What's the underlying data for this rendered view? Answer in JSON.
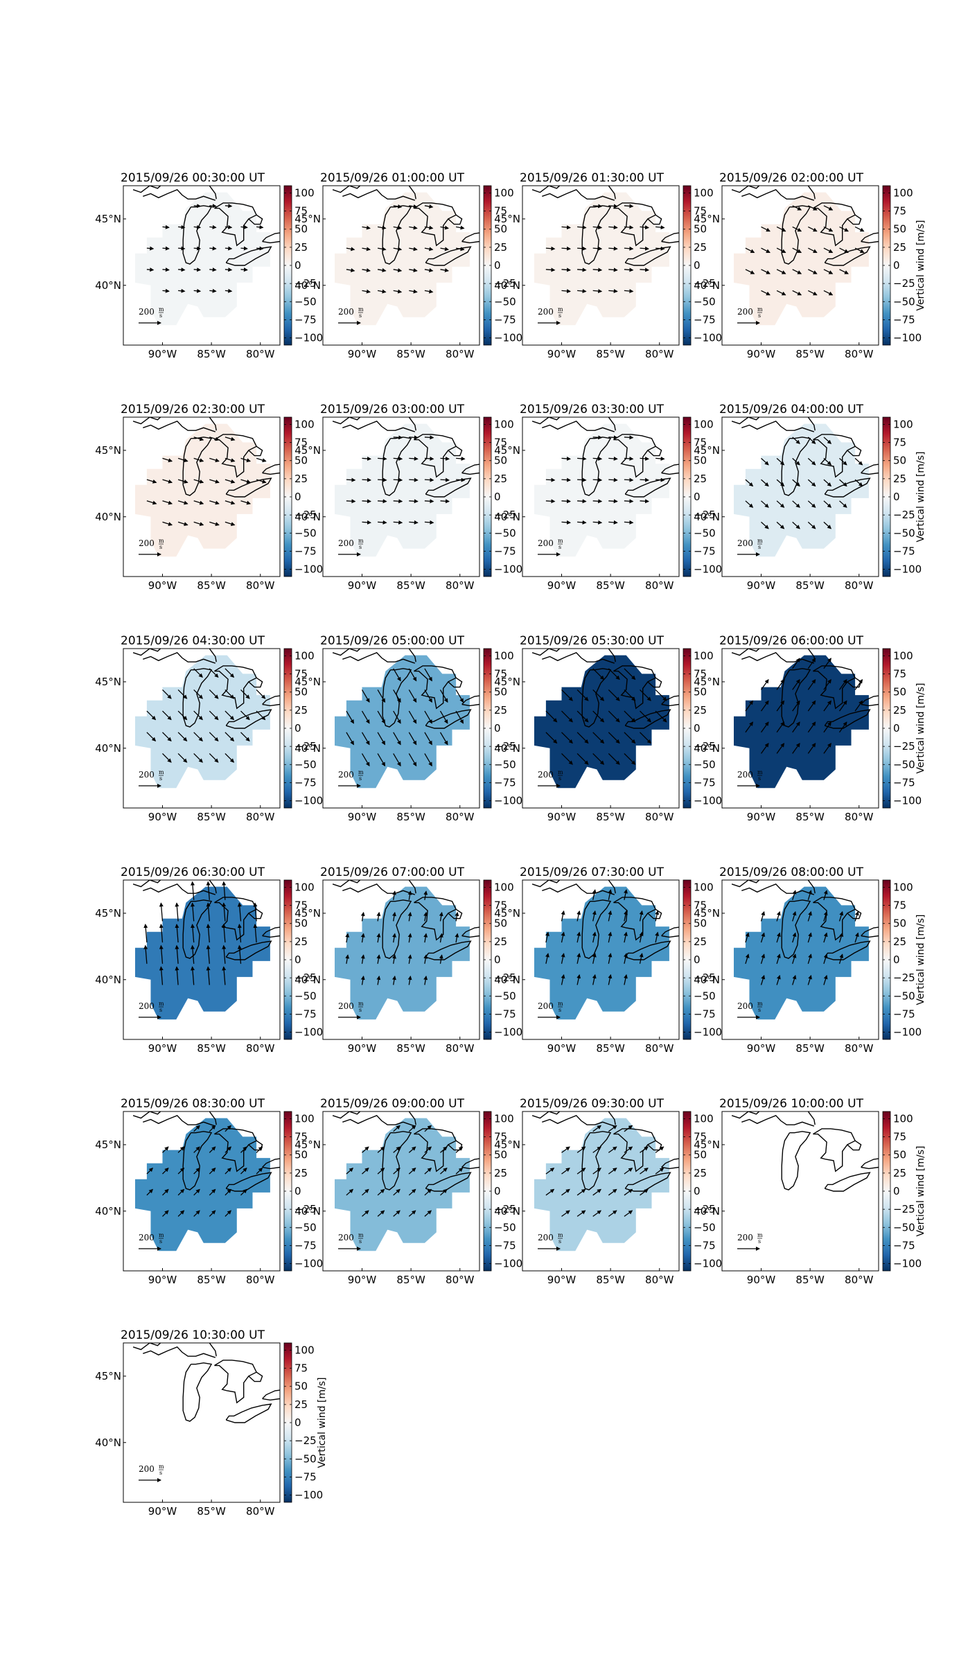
{
  "figure": {
    "colorbar": {
      "label": "Vertical wind [m/s]",
      "ticks": [
        "100",
        "75",
        "50",
        "25",
        "0",
        "−25",
        "−50",
        "−75",
        "−100"
      ],
      "tick_values": [
        100,
        75,
        50,
        25,
        0,
        -25,
        -50,
        -75,
        -100
      ],
      "range": [
        -110,
        110
      ],
      "colormap": "RdBu_r",
      "colors": {
        "low": "#053061",
        "mid": "#f7f7f7",
        "high": "#67001f"
      }
    },
    "xticks": [
      "90°W",
      "85°W",
      "80°W"
    ],
    "xtick_values": [
      -90,
      -85,
      -80
    ],
    "yticks": [
      "45°N",
      "40°N"
    ],
    "ytick_values": [
      45,
      40
    ],
    "lon_range": [
      -94,
      -78
    ],
    "lat_range": [
      35.5,
      47.5
    ],
    "quiver_key_label": "200",
    "quiver_key_units": [
      "m",
      "s"
    ],
    "quiver_key_value": 200
  },
  "chart_data": [
    {
      "type": "heatmap",
      "title": "2015/09/26 00:30:00 UT",
      "vertical_wind": -3,
      "wind_u": 90,
      "wind_v": -8,
      "has_data": true
    },
    {
      "type": "heatmap",
      "title": "2015/09/26 01:00:00 UT",
      "vertical_wind": 5,
      "wind_u": 110,
      "wind_v": -20,
      "has_data": true
    },
    {
      "type": "heatmap",
      "title": "2015/09/26 01:30:00 UT",
      "vertical_wind": 5,
      "wind_u": 120,
      "wind_v": -10,
      "has_data": true
    },
    {
      "type": "heatmap",
      "title": "2015/09/26 02:00:00 UT",
      "vertical_wind": 8,
      "wind_u": 120,
      "wind_v": -60,
      "has_data": true
    },
    {
      "type": "heatmap",
      "title": "2015/09/26 02:30:00 UT",
      "vertical_wind": 8,
      "wind_u": 130,
      "wind_v": -40,
      "has_data": true
    },
    {
      "type": "heatmap",
      "title": "2015/09/26 03:00:00 UT",
      "vertical_wind": -5,
      "wind_u": 120,
      "wind_v": -8,
      "has_data": true
    },
    {
      "type": "heatmap",
      "title": "2015/09/26 03:30:00 UT",
      "vertical_wind": -3,
      "wind_u": 120,
      "wind_v": -8,
      "has_data": true
    },
    {
      "type": "heatmap",
      "title": "2015/09/26 04:00:00 UT",
      "vertical_wind": -15,
      "wind_u": 100,
      "wind_v": -90,
      "has_data": true
    },
    {
      "type": "heatmap",
      "title": "2015/09/26 04:30:00 UT",
      "vertical_wind": -25,
      "wind_u": 120,
      "wind_v": -120,
      "has_data": true
    },
    {
      "type": "heatmap",
      "title": "2015/09/26 05:00:00 UT",
      "vertical_wind": -55,
      "wind_u": 100,
      "wind_v": -170,
      "has_data": true
    },
    {
      "type": "heatmap",
      "title": "2015/09/26 05:30:00 UT",
      "vertical_wind": -105,
      "wind_u": 150,
      "wind_v": -150,
      "has_data": true
    },
    {
      "type": "heatmap",
      "title": "2015/09/26 06:00:00 UT",
      "vertical_wind": -105,
      "wind_u": 100,
      "wind_v": 140,
      "has_data": true
    },
    {
      "type": "heatmap",
      "title": "2015/09/26 06:30:00 UT",
      "vertical_wind": -78,
      "wind_u": -20,
      "wind_v": 250,
      "has_data": true
    },
    {
      "type": "heatmap",
      "title": "2015/09/26 07:00:00 UT",
      "vertical_wind": -55,
      "wind_u": 20,
      "wind_v": 120,
      "has_data": true
    },
    {
      "type": "heatmap",
      "title": "2015/09/26 07:30:00 UT",
      "vertical_wind": -65,
      "wind_u": 30,
      "wind_v": 140,
      "has_data": true
    },
    {
      "type": "heatmap",
      "title": "2015/09/26 08:00:00 UT",
      "vertical_wind": -68,
      "wind_u": 40,
      "wind_v": 130,
      "has_data": true
    },
    {
      "type": "heatmap",
      "title": "2015/09/26 08:30:00 UT",
      "vertical_wind": -68,
      "wind_u": 80,
      "wind_v": 80,
      "has_data": true
    },
    {
      "type": "heatmap",
      "title": "2015/09/26 09:00:00 UT",
      "vertical_wind": -48,
      "wind_u": 90,
      "wind_v": 80,
      "has_data": true
    },
    {
      "type": "heatmap",
      "title": "2015/09/26 09:30:00 UT",
      "vertical_wind": -35,
      "wind_u": 110,
      "wind_v": 80,
      "has_data": true
    },
    {
      "type": "heatmap",
      "title": "2015/09/26 10:00:00 UT",
      "vertical_wind": null,
      "wind_u": null,
      "wind_v": null,
      "has_data": false
    },
    {
      "type": "heatmap",
      "title": "2015/09/26 10:30:00 UT",
      "vertical_wind": null,
      "wind_u": null,
      "wind_v": null,
      "has_data": false
    }
  ]
}
